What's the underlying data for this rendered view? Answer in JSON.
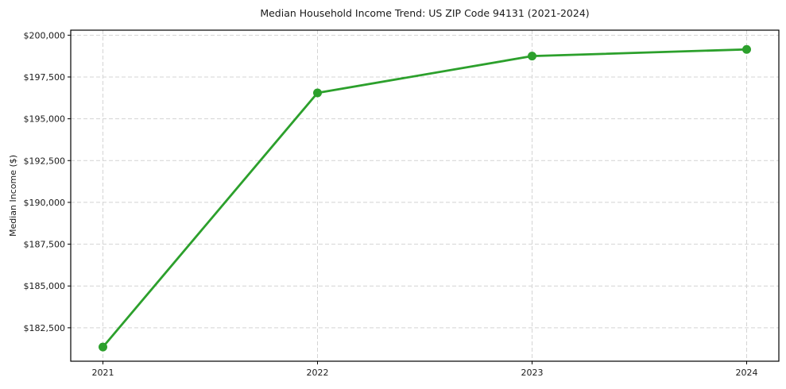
{
  "chart_data": {
    "type": "line",
    "title": "Median Household Income Trend: US ZIP Code 94131 (2021-2024)",
    "xlabel": "",
    "ylabel": "Median Income ($)",
    "x": [
      2021,
      2022,
      2023,
      2024
    ],
    "series": [
      {
        "name": "Median Household Income",
        "values": [
          181350,
          196550,
          198750,
          199150
        ]
      }
    ],
    "xtick_labels": [
      "2021",
      "2022",
      "2023",
      "2024"
    ],
    "yticks": [
      182500,
      185000,
      187500,
      190000,
      192500,
      195000,
      197500,
      200000
    ],
    "ytick_labels": [
      "$182,500",
      "$185,000",
      "$187,500",
      "$190,000",
      "$192,500",
      "$195,000",
      "$197,500",
      "$200,000"
    ],
    "xlim": [
      2020.85,
      2024.15
    ],
    "ylim": [
      180500,
      200300
    ],
    "grid": true,
    "grid_style": "dashed",
    "legend": "none",
    "line_color": "#2ca02c",
    "marker": "circle",
    "grid_color": "#d4d4d4",
    "spine_color": "#000000",
    "background": "#ffffff"
  }
}
